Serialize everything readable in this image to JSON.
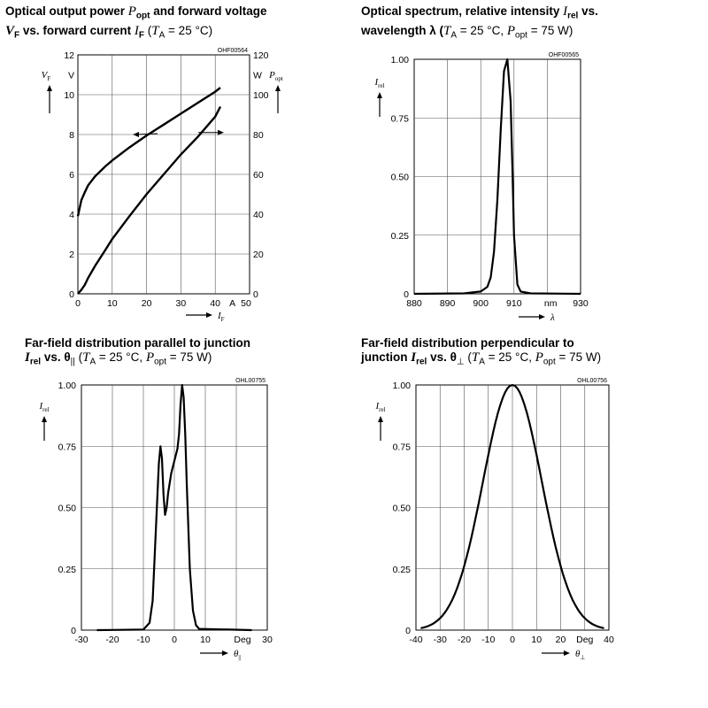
{
  "chart_data": [
    {
      "type": "line",
      "title_parts": [
        "Optical output power ",
        "P",
        "opt",
        " and forward voltage",
        "V",
        "F",
        " vs. forward current ",
        "I",
        "F",
        " (",
        "T",
        "A",
        " = 25 °C)"
      ],
      "figure_code": "OHF00564",
      "x": {
        "range": [
          0,
          50
        ],
        "ticks": [
          "0",
          "10",
          "20",
          "30",
          "40"
        ],
        "unit": "A",
        "unit_tick": "50",
        "label": "I",
        "label_sub": "F"
      },
      "y_left": {
        "range": [
          0,
          12
        ],
        "ticks": [
          "0",
          "2",
          "4",
          "6",
          "8",
          "10"
        ],
        "unit": "V",
        "unit_tick": "12",
        "label": "V",
        "label_sub": "F"
      },
      "y_right": {
        "range": [
          0,
          120
        ],
        "ticks": [
          "0",
          "20",
          "40",
          "60",
          "80",
          "100"
        ],
        "unit": "W",
        "unit_tick": "120",
        "label": "P",
        "label_sub": "opt"
      },
      "grid": true,
      "series": [
        {
          "name": "VF",
          "axis": "left",
          "x": [
            0,
            1,
            2,
            3,
            5,
            8,
            10,
            15,
            20,
            25,
            30,
            35,
            40,
            41.5
          ],
          "y": [
            3.9,
            4.7,
            5.1,
            5.45,
            5.9,
            6.4,
            6.7,
            7.35,
            7.95,
            8.5,
            9.05,
            9.6,
            10.15,
            10.35
          ]
        },
        {
          "name": "Popt",
          "axis": "right",
          "x": [
            0,
            1,
            2,
            3,
            5,
            8,
            10,
            15,
            20,
            25,
            30,
            35,
            40,
            41.5
          ],
          "y": [
            0,
            2,
            4.5,
            8,
            14,
            22,
            27.5,
            39,
            50,
            60,
            70,
            79,
            89,
            94
          ]
        }
      ],
      "annotations": [
        "left arrow near 8 V (VF curve uses left axis)",
        "right arrow near 81 W (Popt curve uses right axis)"
      ]
    },
    {
      "type": "line",
      "title_parts": [
        "Optical spectrum, relative intensity ",
        "I",
        "rel",
        " vs.",
        "wavelength λ (",
        "T",
        "A",
        " = 25 °C, ",
        "P",
        "opt",
        " = 75 W)"
      ],
      "figure_code": "OHF00565",
      "x": {
        "range": [
          880,
          930
        ],
        "ticks": [
          "880",
          "890",
          "900",
          "910"
        ],
        "unit": "nm",
        "unit_tick": "930",
        "label": "λ"
      },
      "y": {
        "range": [
          0,
          1
        ],
        "ticks": [
          "0",
          "0.25",
          "0.50",
          "0.75",
          "1.00"
        ],
        "label": "I",
        "label_sub": "rel"
      },
      "grid": true,
      "series": [
        {
          "name": "Irel",
          "x": [
            880,
            895,
            900,
            902,
            903,
            904,
            905,
            906,
            907,
            908,
            909,
            909.5,
            910,
            911,
            912,
            915,
            930
          ],
          "y": [
            0,
            0.002,
            0.01,
            0.03,
            0.07,
            0.18,
            0.4,
            0.7,
            0.95,
            1.0,
            0.82,
            0.55,
            0.25,
            0.04,
            0.01,
            0.002,
            0
          ]
        }
      ]
    },
    {
      "type": "line",
      "title_parts": [
        "Far-field distribution parallel to junction",
        "I",
        "rel",
        " vs. θ",
        "||",
        " (",
        "T",
        "A",
        " = 25 °C, ",
        "P",
        "opt",
        " = 75 W)"
      ],
      "figure_code": "OHL00755",
      "x": {
        "range": [
          -30,
          30
        ],
        "ticks": [
          "-30",
          "-20",
          "-10",
          "0",
          "10"
        ],
        "unit": "Deg",
        "unit_tick": "30",
        "label": "θ",
        "label_sub": "||"
      },
      "y": {
        "range": [
          0,
          1
        ],
        "ticks": [
          "0",
          "0.25",
          "0.50",
          "0.75",
          "1.00"
        ],
        "label": "I",
        "label_sub": "rel"
      },
      "grid": true,
      "series": [
        {
          "name": "Irel",
          "x": [
            -25,
            -10,
            -8,
            -7,
            -6,
            -5,
            -4.5,
            -4,
            -3.5,
            -3,
            -2.5,
            -2,
            -1,
            0,
            1,
            1.5,
            2,
            2.5,
            3,
            3.5,
            4,
            5,
            6,
            7,
            8,
            25
          ],
          "y": [
            0,
            0.002,
            0.03,
            0.12,
            0.4,
            0.68,
            0.75,
            0.7,
            0.55,
            0.47,
            0.5,
            0.56,
            0.64,
            0.69,
            0.74,
            0.8,
            0.92,
            1.0,
            0.95,
            0.8,
            0.6,
            0.25,
            0.08,
            0.02,
            0.005,
            0
          ]
        }
      ]
    },
    {
      "type": "line",
      "title_parts": [
        "Far-field distribution perpendicular to",
        "junction ",
        "I",
        "rel",
        " vs. θ",
        "⊥",
        " (",
        "T",
        "A",
        " = 25 °C, ",
        "P",
        "opt",
        " = 75 W)"
      ],
      "figure_code": "OHL00756",
      "x": {
        "range": [
          -40,
          40
        ],
        "ticks": [
          "-40",
          "-30",
          "-20",
          "-10",
          "0",
          "10",
          "20"
        ],
        "unit": "Deg",
        "unit_tick": "40",
        "label": "θ",
        "label_sub": "⊥"
      },
      "y": {
        "range": [
          0,
          1
        ],
        "ticks": [
          "0",
          "0.25",
          "0.50",
          "0.75",
          "1.00"
        ],
        "label": "I",
        "label_sub": "rel"
      },
      "grid": true,
      "series": [
        {
          "name": "Irel",
          "shape": "gaussian",
          "center": 0,
          "sigma": 12.2,
          "x_span": [
            -38,
            38
          ]
        }
      ]
    }
  ]
}
